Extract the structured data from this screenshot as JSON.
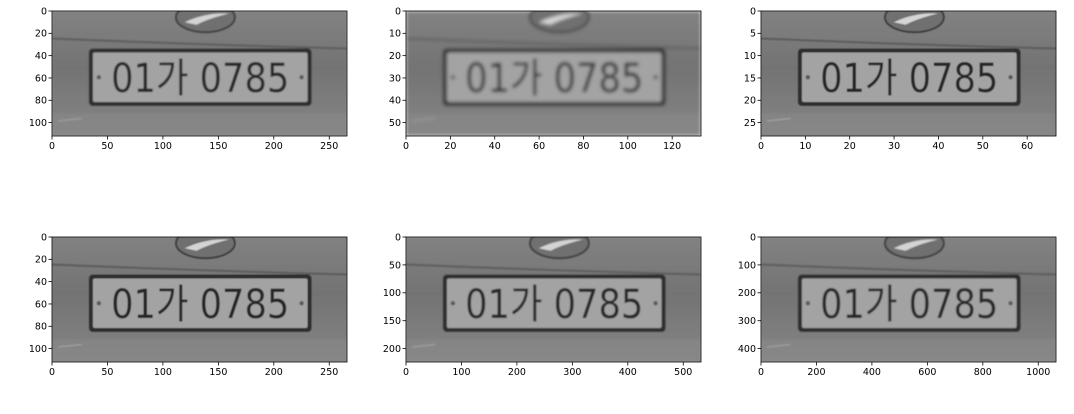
{
  "chart_data": [
    {
      "type": "image",
      "plate_text": "01가 0785",
      "image_scale": 1,
      "x_ticks": [
        0,
        50,
        100,
        150,
        200,
        250
      ],
      "y_ticks": [
        0,
        20,
        40,
        60,
        80,
        100
      ],
      "xlim": [
        0,
        266
      ],
      "ylim": [
        112,
        0
      ]
    },
    {
      "type": "image",
      "plate_text": "01가 0785",
      "image_scale": 0.5,
      "x_ticks": [
        0,
        20,
        40,
        60,
        80,
        100,
        120
      ],
      "y_ticks": [
        0,
        10,
        20,
        30,
        40,
        50
      ],
      "xlim": [
        0,
        133
      ],
      "ylim": [
        56,
        0
      ]
    },
    {
      "type": "image",
      "plate_text": "01가 0785",
      "image_scale": 0.25,
      "x_ticks": [
        0,
        10,
        20,
        30,
        40,
        50,
        60
      ],
      "y_ticks": [
        0,
        5,
        10,
        15,
        20,
        25
      ],
      "xlim": [
        0,
        66.5
      ],
      "ylim": [
        28,
        0
      ]
    },
    {
      "type": "image",
      "plate_text": "01가 0785",
      "image_scale": 1,
      "x_ticks": [
        0,
        50,
        100,
        150,
        200,
        250
      ],
      "y_ticks": [
        0,
        20,
        40,
        60,
        80,
        100
      ],
      "xlim": [
        0,
        266
      ],
      "ylim": [
        112,
        0
      ]
    },
    {
      "type": "image",
      "plate_text": "01가 0785",
      "image_scale": 2,
      "x_ticks": [
        0,
        100,
        200,
        300,
        400,
        500
      ],
      "y_ticks": [
        0,
        50,
        100,
        150,
        200
      ],
      "xlim": [
        0,
        532
      ],
      "ylim": [
        224,
        0
      ]
    },
    {
      "type": "image",
      "plate_text": "01가 0785",
      "image_scale": 4,
      "x_ticks": [
        0,
        200,
        400,
        600,
        800,
        1000
      ],
      "y_ticks": [
        0,
        100,
        200,
        300,
        400
      ],
      "xlim": [
        0,
        1064
      ],
      "ylim": [
        448,
        0
      ]
    }
  ]
}
